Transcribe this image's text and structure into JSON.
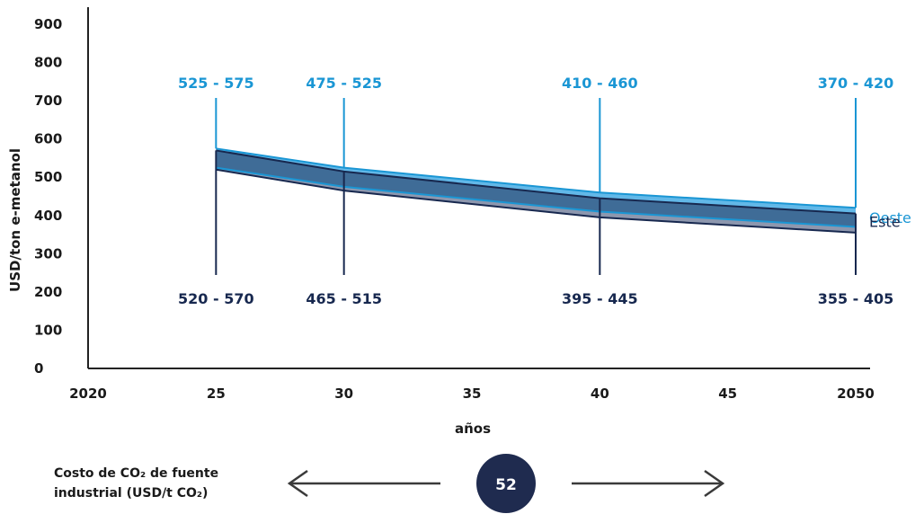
{
  "chart_data": {
    "type": "area",
    "ylabel": "USD/ton e-metanol",
    "xlabel": "años",
    "ylim": [
      0,
      900
    ],
    "xlim": [
      2020,
      2050
    ],
    "y_ticks": [
      0,
      100,
      200,
      300,
      400,
      500,
      600,
      700,
      800,
      900
    ],
    "x_ticks": [
      2020,
      2025,
      2030,
      2035,
      2040,
      2045,
      2050
    ],
    "x_tick_labels": [
      "2020",
      "25",
      "30",
      "35",
      "40",
      "45",
      "2050"
    ],
    "x": [
      2025,
      2030,
      2040,
      2050
    ],
    "series": [
      {
        "name": "Oeste",
        "color": "#1a96d4",
        "low": [
          525,
          475,
          410,
          370
        ],
        "high": [
          575,
          525,
          460,
          420
        ]
      },
      {
        "name": "Este",
        "color": "#17284f",
        "low": [
          520,
          465,
          395,
          355
        ],
        "high": [
          570,
          515,
          445,
          405
        ]
      }
    ],
    "range_labels": [
      {
        "x": 2025,
        "top": "525 - 575",
        "bottom": "520 - 570"
      },
      {
        "x": 2030,
        "top": "475 - 525",
        "bottom": "465 - 515"
      },
      {
        "x": 2040,
        "top": "410 - 460",
        "bottom": "395 - 445"
      },
      {
        "x": 2050,
        "top": "370 - 420",
        "bottom": "355 - 405"
      }
    ],
    "legend": [
      "Oeste",
      "Este"
    ],
    "legend_placement": "right"
  },
  "footer": {
    "label_line1": "Costo de CO₂ de fuente",
    "label_line2": "industrial (USD/t CO₂)",
    "badge_value": "52"
  },
  "colors": {
    "oeste": "#1a96d4",
    "este": "#17284f",
    "overlap": "#3f6c97",
    "este_only": "#8d97ae",
    "oeste_only": "#62b8e8",
    "axis": "#222222",
    "badge": "#1f2b4f"
  }
}
